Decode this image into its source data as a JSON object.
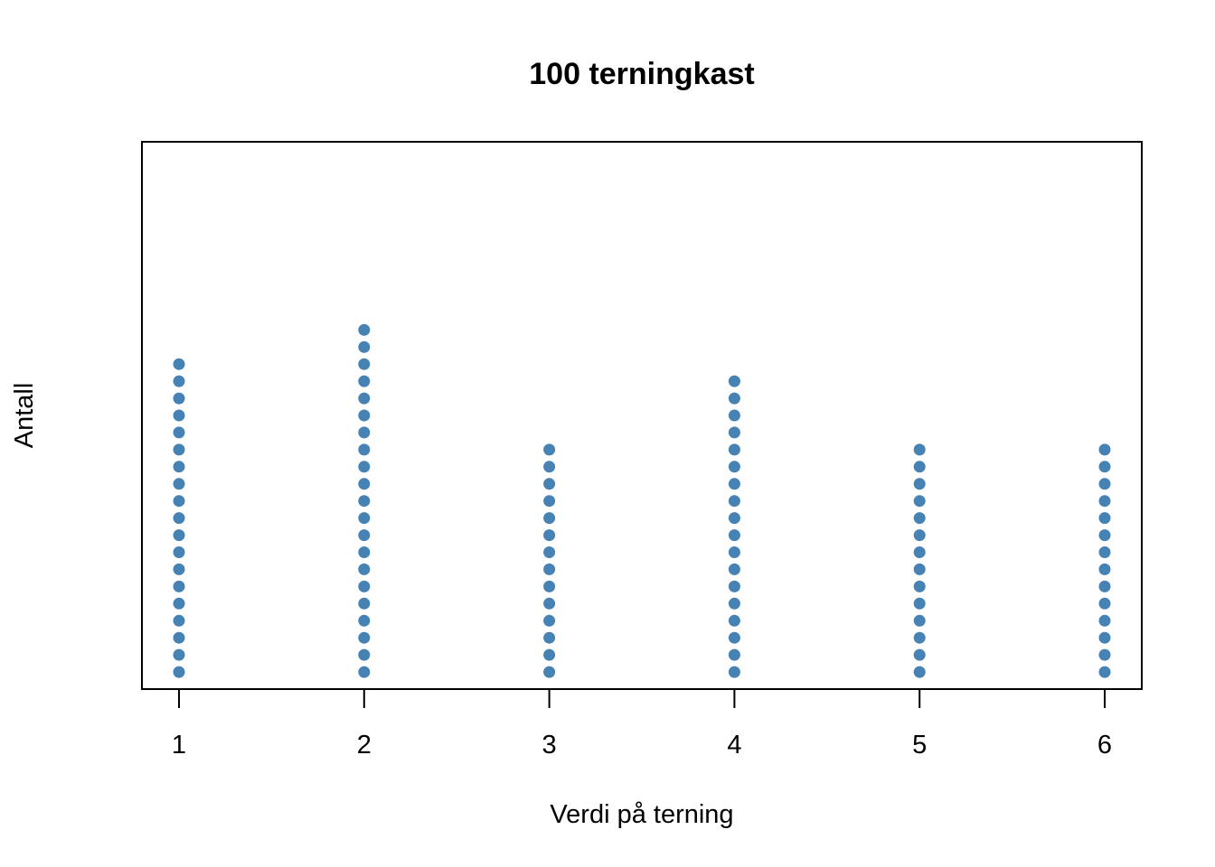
{
  "chart_data": {
    "type": "scatter",
    "subtype": "dot-plot",
    "title": "100 terningkast",
    "xlabel": "Verdi på terning",
    "ylabel": "Antall",
    "x_ticks": [
      "1",
      "2",
      "3",
      "4",
      "5",
      "6"
    ],
    "categories": [
      1,
      2,
      3,
      4,
      5,
      6
    ],
    "counts": [
      19,
      21,
      14,
      18,
      14,
      14
    ],
    "xlim": [
      0.8,
      6.2
    ],
    "ylim": [
      0,
      32
    ],
    "y_ticks_shown": false,
    "grid": false,
    "legend": "none",
    "point_color": "#4682B4"
  }
}
